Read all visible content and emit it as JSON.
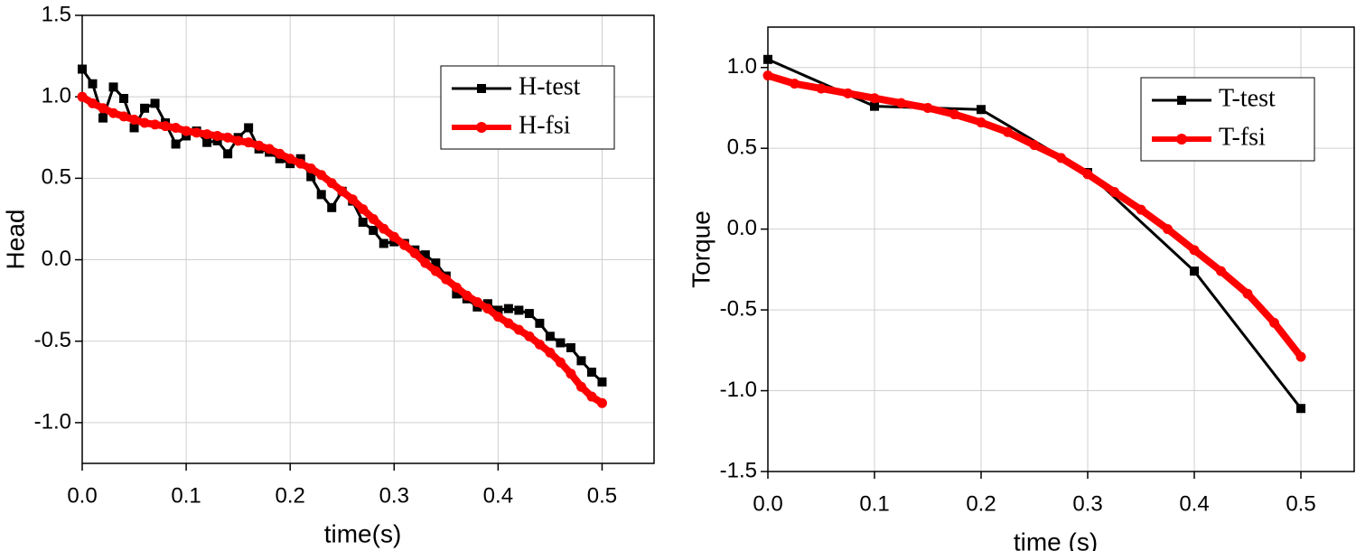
{
  "chart_data": [
    {
      "type": "line",
      "xlabel": "time(s)",
      "ylabel": "Head",
      "xlim": [
        0,
        0.55
      ],
      "ylim": [
        -1.25,
        1.5
      ],
      "xticks": [
        {
          "value": 0,
          "label": "0.0"
        },
        0.1,
        0.2,
        0.3,
        0.4,
        0.5
      ],
      "yticks": [
        {
          "value": -1,
          "label": "-1.0"
        },
        -0.5,
        {
          "value": 0,
          "label": "0.0"
        },
        0.5,
        {
          "value": 1,
          "label": "1.0"
        },
        1.5
      ],
      "grid": true,
      "legend": "upper right",
      "series": [
        {
          "name": "H-test",
          "color": "#000000",
          "marker": "square",
          "x": [
            0,
            0.01,
            0.02,
            0.03,
            0.04,
            0.05,
            0.06,
            0.07,
            0.08,
            0.09,
            0.1,
            0.11,
            0.12,
            0.13,
            0.14,
            0.15,
            0.16,
            0.17,
            0.18,
            0.19,
            0.2,
            0.21,
            0.22,
            0.23,
            0.24,
            0.25,
            0.26,
            0.27,
            0.28,
            0.29,
            0.3,
            0.31,
            0.32,
            0.33,
            0.34,
            0.35,
            0.36,
            0.37,
            0.38,
            0.39,
            0.4,
            0.41,
            0.42,
            0.43,
            0.44,
            0.45,
            0.46,
            0.47,
            0.48,
            0.49,
            0.5
          ],
          "values": [
            1.17,
            1.08,
            0.87,
            1.06,
            0.99,
            0.81,
            0.93,
            0.96,
            0.84,
            0.71,
            0.76,
            0.79,
            0.72,
            0.73,
            0.65,
            0.75,
            0.81,
            0.68,
            0.66,
            0.62,
            0.59,
            0.62,
            0.51,
            0.4,
            0.32,
            0.42,
            0.36,
            0.23,
            0.18,
            0.1,
            0.11,
            0.1,
            0.06,
            0.03,
            -0.02,
            -0.1,
            -0.21,
            -0.24,
            -0.29,
            -0.27,
            -0.31,
            -0.3,
            -0.31,
            -0.33,
            -0.39,
            -0.47,
            -0.51,
            -0.54,
            -0.62,
            -0.69,
            -0.75
          ]
        },
        {
          "name": "H-fsi",
          "color": "#ff0000",
          "marker": "circle",
          "x": [
            0,
            0.01,
            0.02,
            0.03,
            0.04,
            0.05,
            0.06,
            0.07,
            0.08,
            0.09,
            0.1,
            0.11,
            0.12,
            0.13,
            0.14,
            0.15,
            0.16,
            0.17,
            0.18,
            0.19,
            0.2,
            0.21,
            0.22,
            0.23,
            0.24,
            0.25,
            0.26,
            0.27,
            0.28,
            0.29,
            0.3,
            0.31,
            0.32,
            0.33,
            0.34,
            0.35,
            0.36,
            0.37,
            0.38,
            0.39,
            0.4,
            0.41,
            0.42,
            0.43,
            0.44,
            0.45,
            0.46,
            0.47,
            0.48,
            0.49,
            0.5
          ],
          "values": [
            1.0,
            0.96,
            0.93,
            0.9,
            0.88,
            0.86,
            0.84,
            0.83,
            0.82,
            0.81,
            0.79,
            0.78,
            0.77,
            0.76,
            0.75,
            0.73,
            0.72,
            0.7,
            0.68,
            0.65,
            0.62,
            0.59,
            0.56,
            0.52,
            0.47,
            0.42,
            0.37,
            0.31,
            0.25,
            0.19,
            0.14,
            0.09,
            0.04,
            -0.02,
            -0.07,
            -0.12,
            -0.17,
            -0.22,
            -0.26,
            -0.3,
            -0.35,
            -0.39,
            -0.43,
            -0.47,
            -0.52,
            -0.57,
            -0.63,
            -0.7,
            -0.78,
            -0.84,
            -0.88
          ]
        }
      ]
    },
    {
      "type": "line",
      "xlabel": "time (s)",
      "ylabel": "Torque",
      "xlim": [
        0,
        0.55
      ],
      "ylim": [
        -1.5,
        1.25
      ],
      "xticks": [
        {
          "value": 0,
          "label": "0.0"
        },
        0.1,
        0.2,
        0.3,
        0.4,
        0.5
      ],
      "yticks": [
        -1.5,
        {
          "value": -1,
          "label": "-1.0"
        },
        -0.5,
        {
          "value": 0,
          "label": "0.0"
        },
        0.5,
        {
          "value": 1,
          "label": "1.0"
        }
      ],
      "grid": true,
      "legend": "upper right",
      "series": [
        {
          "name": "T-test",
          "color": "#000000",
          "marker": "square",
          "x": [
            0,
            0.1,
            0.2,
            0.3,
            0.4,
            0.5
          ],
          "values": [
            1.05,
            0.76,
            0.74,
            0.35,
            -0.26,
            -1.11
          ]
        },
        {
          "name": "T-fsi",
          "color": "#ff0000",
          "marker": "circle",
          "x": [
            0,
            0.025,
            0.05,
            0.075,
            0.1,
            0.125,
            0.15,
            0.175,
            0.2,
            0.225,
            0.25,
            0.275,
            0.3,
            0.325,
            0.35,
            0.375,
            0.4,
            0.425,
            0.45,
            0.475,
            0.5
          ],
          "values": [
            0.95,
            0.9,
            0.87,
            0.84,
            0.81,
            0.78,
            0.75,
            0.71,
            0.66,
            0.6,
            0.52,
            0.44,
            0.34,
            0.23,
            0.12,
            0.0,
            -0.13,
            -0.26,
            -0.4,
            -0.58,
            -0.79
          ]
        }
      ]
    }
  ]
}
